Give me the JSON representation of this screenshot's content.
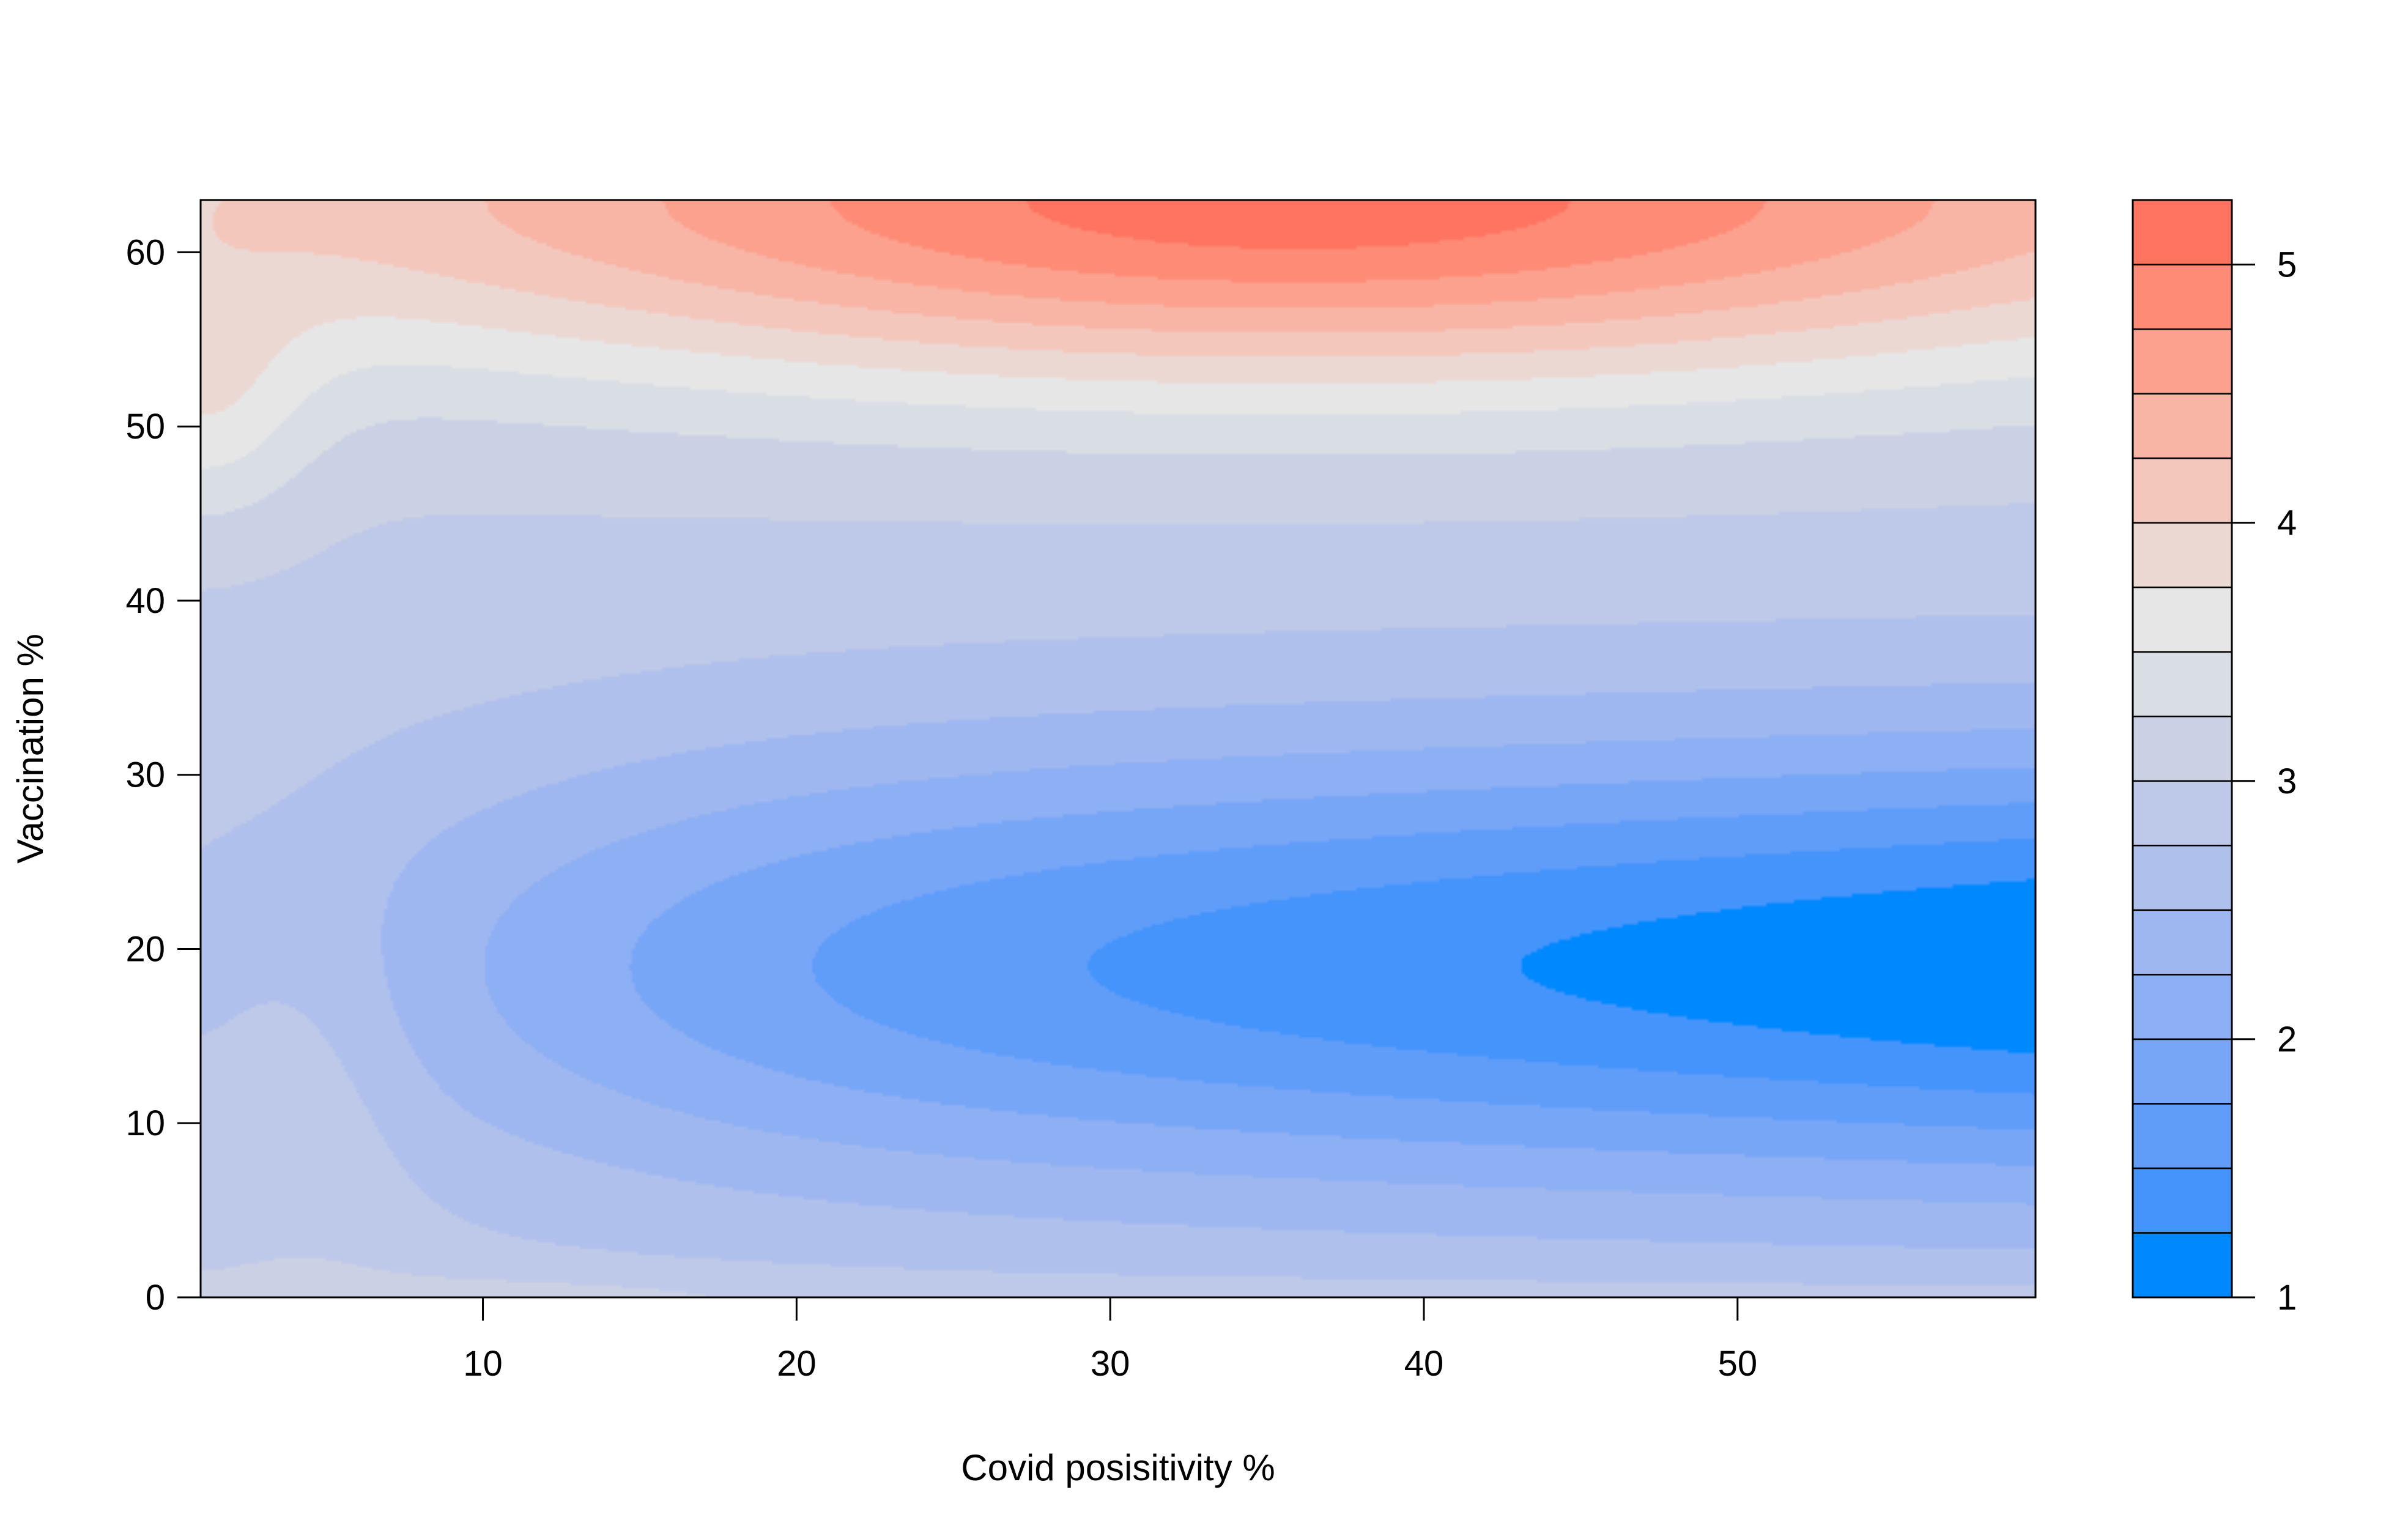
{
  "chart_data": {
    "type": "heatmap",
    "subtype": "filled-contour",
    "xlabel": "Covid posisitivity %",
    "ylabel": "Vaccination %",
    "xlim": [
      1,
      59.5
    ],
    "ylim": [
      0,
      63
    ],
    "x_ticks": [
      10,
      20,
      30,
      40,
      50
    ],
    "y_ticks": [
      0,
      10,
      20,
      30,
      40,
      50,
      60
    ],
    "z_levels": [
      1,
      1.25,
      1.5,
      1.75,
      2,
      2.25,
      2.5,
      2.75,
      3,
      3.25,
      3.5,
      3.75,
      4,
      4.25,
      4.5,
      4.75,
      5,
      5.25
    ],
    "legend_ticks": [
      1,
      2,
      3,
      4,
      5
    ],
    "legend_placement": "right",
    "grid": false,
    "color_low": "#0088ff",
    "color_mid": "#e6e6e6",
    "color_high": "#ff4433",
    "level_colors": [
      "#0088ff",
      "#4494fb",
      "#5f9df9",
      "#78a6f7",
      "#8daff3",
      "#9fb7f0",
      "#afc0ec",
      "#bec8e8",
      "#cbd1e4",
      "#d9dde4",
      "#e6e6e6",
      "#ecd8d3",
      "#f4c7bc",
      "#f8b4a4",
      "#fca18e",
      "#fe8b76",
      "#ff7460",
      "#ff5d4b",
      "#ff4433"
    ]
  }
}
